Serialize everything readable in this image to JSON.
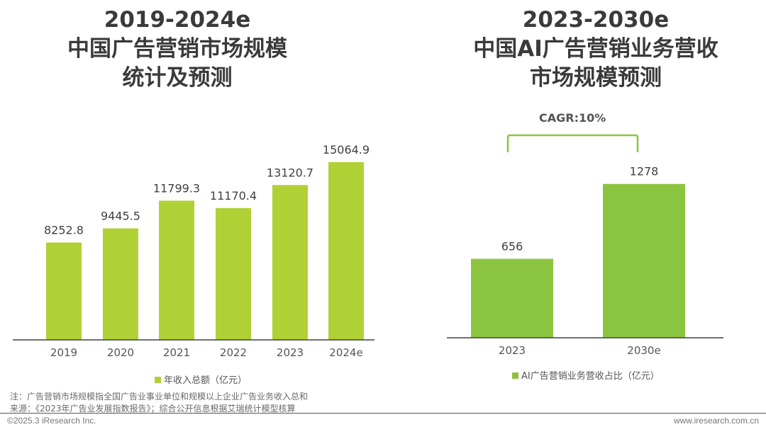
{
  "chart_data": [
    {
      "type": "bar",
      "title_lines": [
        "2019-2024e",
        "中国广告营销市场规模",
        "统计及预测"
      ],
      "categories": [
        "2019",
        "2020",
        "2021",
        "2022",
        "2023",
        "2024e"
      ],
      "series": [
        {
          "name": "年收入总额（亿元）",
          "values": [
            8252.8,
            9445.5,
            11799.3,
            11170.4,
            13120.7,
            15064.9
          ]
        }
      ],
      "data_labels": [
        "8252.8",
        "9445.5",
        "11799.3",
        "11170.4",
        "13120.7",
        "15064.9"
      ],
      "ylim": [
        0,
        18000
      ],
      "grid": false,
      "legend": "bottom",
      "color": "#afd135"
    },
    {
      "type": "bar",
      "title_lines": [
        "2023-2030e",
        "中国AI广告营销业务营收",
        "市场规模预测"
      ],
      "categories": [
        "2023",
        "2030e"
      ],
      "series": [
        {
          "name": "AI广告营销业务营收占比（亿元）",
          "values": [
            656,
            1278
          ]
        }
      ],
      "data_labels": [
        "656",
        "1278"
      ],
      "annotation": "CAGR:10%",
      "ylim": [
        0,
        1600
      ],
      "grid": false,
      "legend": "bottom",
      "color": "#8bc540"
    }
  ],
  "footer": {
    "note": "注：广告营销市场规模指全国广告业事业单位和规模以上企业广告业务收入总和",
    "source": "来源：《2023年广告业发展指数报告》；综合公开信息根据艾瑞统计模型核算",
    "copyright": "©2025.3 iResearch Inc.",
    "url": "www.iresearch.com.cn"
  }
}
